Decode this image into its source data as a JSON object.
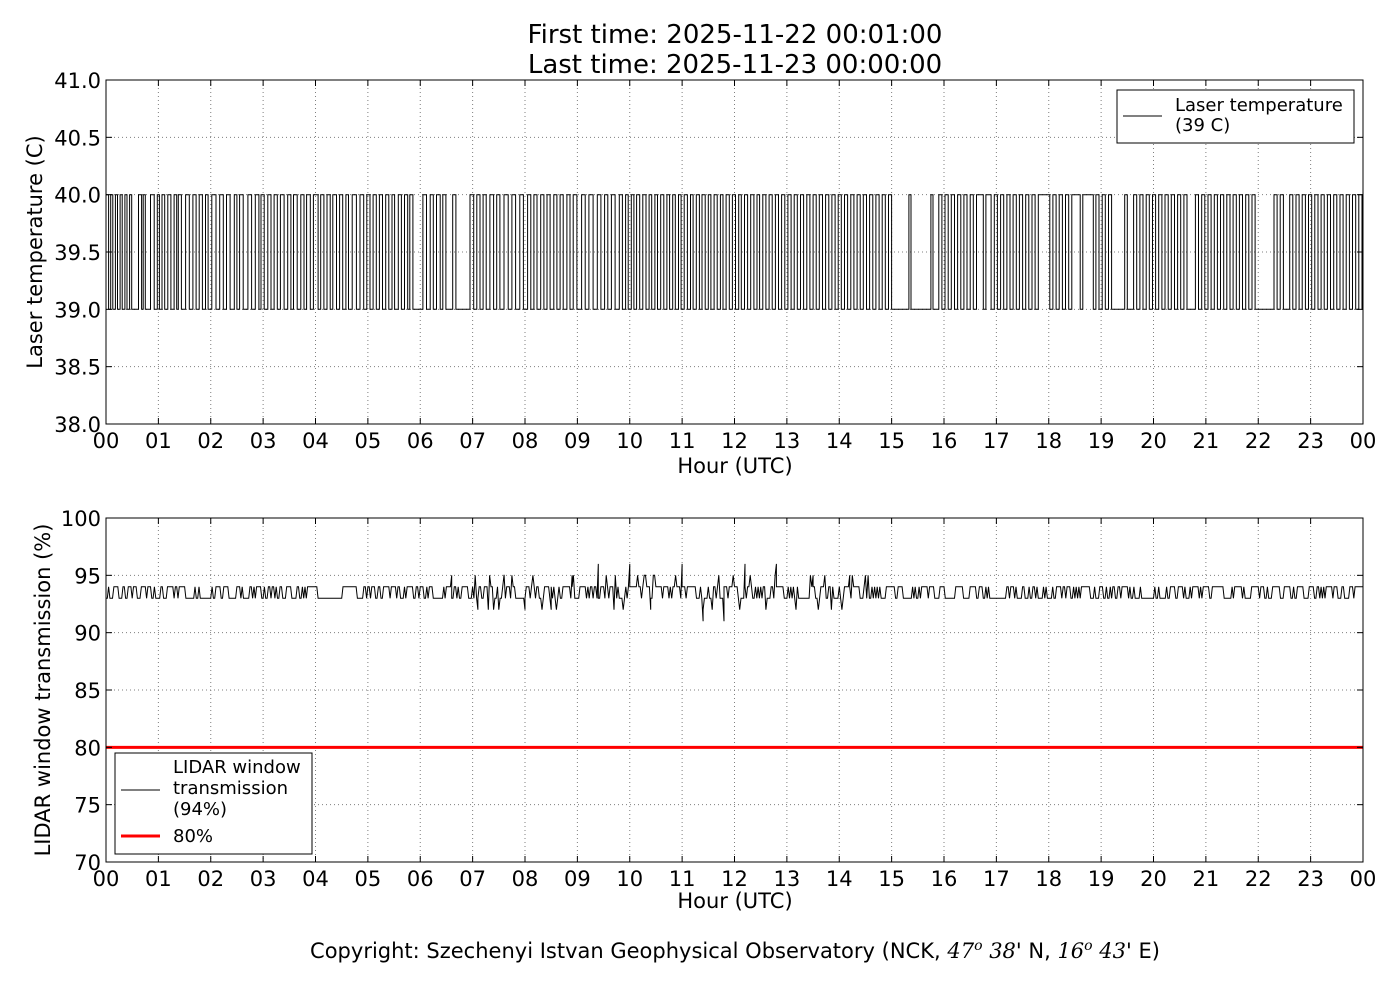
{
  "figure": {
    "title_line1": "First time: 2025-11-22 00:01:00",
    "title_line2": "Last time: 2025-11-23 00:00:00",
    "copyright": {
      "prefix": "Copyright: Szechenyi Istvan Geophysical Observatory (NCK, ",
      "lat_deg": "47",
      "deg_mark": "o",
      "lat_min": "38",
      "lat_suffix": "' N, ",
      "lon_deg": "16",
      "lon_min": "43",
      "lon_suffix": "' E)"
    }
  },
  "colors": {
    "series": "#000000",
    "threshold": "#ff0000",
    "grid": "#7f7f7f"
  },
  "chart_data": [
    {
      "type": "line",
      "title": "",
      "xlabel": "Hour (UTC)",
      "ylabel": "Laser temperature (C)",
      "xlim": [
        0,
        24
      ],
      "ylim": [
        38.0,
        41.0
      ],
      "xtick_labels": [
        "00",
        "01",
        "02",
        "03",
        "04",
        "05",
        "06",
        "07",
        "08",
        "09",
        "10",
        "11",
        "12",
        "13",
        "14",
        "15",
        "16",
        "17",
        "18",
        "19",
        "20",
        "21",
        "22",
        "23",
        "00"
      ],
      "ytick_values": [
        38.0,
        38.5,
        39.0,
        39.5,
        40.0,
        40.5,
        41.0
      ],
      "ytick_labels": [
        "38.0",
        "38.5",
        "39.0",
        "39.5",
        "40.0",
        "40.5",
        "41.0"
      ],
      "grid": true,
      "legend_position": "top-right",
      "series": [
        {
          "name": "Laser temperature\n(39 C)",
          "legend_lines": [
            "Laser temperature",
            "(39 C)"
          ],
          "color": "#000000",
          "levels": [
            39.0,
            40.0
          ],
          "description_of_values": "step signal switching between the two levels",
          "toggle_hours": [
            0.0,
            0.05,
            0.09,
            0.13,
            0.18,
            0.22,
            0.27,
            0.31,
            0.36,
            0.4,
            0.45,
            0.49,
            0.62,
            0.68,
            0.71,
            0.75,
            0.85,
            0.92,
            0.98,
            1.02,
            1.07,
            1.12,
            1.18,
            1.24,
            1.3,
            1.35,
            1.38,
            1.44,
            1.52,
            1.59,
            1.66,
            1.72,
            1.78,
            1.84,
            1.9,
            1.95,
            2.02,
            2.1,
            2.17,
            2.24,
            2.3,
            2.37,
            2.45,
            2.5,
            2.55,
            2.62,
            2.71,
            2.78,
            2.85,
            2.92,
            2.96,
            3.02,
            3.09,
            3.15,
            3.21,
            3.27,
            3.33,
            3.4,
            3.47,
            3.53,
            3.58,
            3.65,
            3.72,
            3.78,
            3.83,
            3.9,
            3.96,
            4.05,
            4.1,
            4.16,
            4.22,
            4.28,
            4.33,
            4.4,
            4.46,
            4.52,
            4.58,
            4.63,
            4.7,
            4.78,
            4.85,
            4.92,
            4.98,
            5.04,
            5.1,
            5.16,
            5.22,
            5.28,
            5.34,
            5.4,
            5.46,
            5.51,
            5.58,
            5.64,
            5.7,
            5.76,
            5.8,
            5.86,
            6.05,
            6.12,
            6.19,
            6.25,
            6.31,
            6.38,
            6.43,
            6.49,
            6.62,
            6.68,
            6.95,
            7.02,
            7.08,
            7.14,
            7.2,
            7.26,
            7.33,
            7.4,
            7.46,
            7.52,
            7.6,
            7.68,
            7.75,
            7.82,
            7.9,
            7.97,
            8.05,
            8.11,
            8.17,
            8.23,
            8.3,
            8.36,
            8.42,
            8.48,
            8.55,
            8.61,
            8.67,
            8.73,
            8.8,
            8.86,
            8.92,
            8.99,
            9.08,
            9.15,
            9.22,
            9.3,
            9.38,
            9.45,
            9.52,
            9.58,
            9.65,
            9.72,
            9.8,
            9.86,
            9.92,
            9.97,
            10.03,
            10.08,
            10.13,
            10.19,
            10.25,
            10.31,
            10.37,
            10.42,
            10.48,
            10.53,
            10.59,
            10.65,
            10.71,
            10.76,
            10.82,
            10.87,
            10.93,
            10.98,
            11.04,
            11.1,
            11.16,
            11.21,
            11.27,
            11.33,
            11.38,
            11.44,
            11.5,
            11.55,
            11.61,
            11.67,
            11.73,
            11.78,
            11.84,
            11.9,
            11.96,
            12.02,
            12.08,
            12.13,
            12.19,
            12.25,
            12.31,
            12.37,
            12.43,
            12.48,
            12.54,
            12.6,
            12.66,
            12.72,
            12.78,
            12.84,
            12.9,
            12.96,
            13.02,
            13.08,
            13.14,
            13.2,
            13.26,
            13.32,
            13.38,
            13.44,
            13.5,
            13.56,
            13.62,
            13.68,
            13.74,
            13.8,
            13.86,
            13.92,
            13.98,
            14.04,
            14.1,
            14.16,
            14.22,
            14.28,
            14.34,
            14.4,
            14.46,
            14.52,
            14.58,
            14.64,
            14.7,
            14.76,
            14.82,
            14.88,
            14.94,
            15.0,
            15.33,
            15.37,
            15.75,
            15.79,
            15.9,
            15.96,
            16.02,
            16.08,
            16.14,
            16.2,
            16.26,
            16.32,
            16.38,
            16.44,
            16.5,
            16.56,
            16.62,
            16.75,
            16.8,
            16.9,
            16.96,
            17.02,
            17.08,
            17.14,
            17.2,
            17.26,
            17.32,
            17.38,
            17.44,
            17.5,
            17.56,
            17.62,
            17.68,
            17.74,
            17.8,
            18.02,
            18.08,
            18.14,
            18.2,
            18.26,
            18.32,
            18.38,
            18.44,
            18.6,
            18.65,
            18.85,
            18.9,
            18.96,
            19.02,
            19.08,
            19.14,
            19.2,
            19.45,
            19.5,
            19.62,
            19.68,
            19.74,
            19.8,
            19.86,
            19.92,
            19.98,
            20.04,
            20.1,
            20.16,
            20.22,
            20.28,
            20.34,
            20.4,
            20.46,
            20.52,
            20.58,
            20.64,
            20.8,
            20.86,
            20.92,
            20.98,
            21.04,
            21.1,
            21.16,
            21.22,
            21.28,
            21.34,
            21.4,
            21.46,
            21.52,
            21.58,
            21.64,
            21.7,
            21.76,
            21.82,
            21.88,
            21.94,
            22.3,
            22.36,
            22.42,
            22.48,
            22.6,
            22.66,
            22.72,
            22.78,
            22.84,
            22.9,
            22.96,
            23.02,
            23.08,
            23.14,
            23.2,
            23.26,
            23.32,
            23.38,
            23.44,
            23.5,
            23.56,
            23.62,
            23.68,
            23.74,
            23.8,
            23.86,
            23.92,
            23.98
          ]
        }
      ]
    },
    {
      "type": "line",
      "title": "",
      "xlabel": "Hour (UTC)",
      "ylabel": "LIDAR window transmission (%)",
      "xlim": [
        0,
        24
      ],
      "ylim": [
        70,
        100
      ],
      "xtick_labels": [
        "00",
        "01",
        "02",
        "03",
        "04",
        "05",
        "06",
        "07",
        "08",
        "09",
        "10",
        "11",
        "12",
        "13",
        "14",
        "15",
        "16",
        "17",
        "18",
        "19",
        "20",
        "21",
        "22",
        "23",
        "00"
      ],
      "ytick_values": [
        70,
        75,
        80,
        85,
        90,
        95,
        100
      ],
      "ytick_labels": [
        "70",
        "75",
        "80",
        "85",
        "90",
        "95",
        "100"
      ],
      "grid": true,
      "legend_position": "bottom-left",
      "series": [
        {
          "name": "LIDAR window\ntransmission\n(94%)",
          "legend_lines": [
            "LIDAR window",
            "transmission",
            "(94%)"
          ],
          "color": "#000000",
          "baseline_levels": [
            93,
            94
          ],
          "active_window_hours": [
            6.6,
            14.6
          ],
          "active_excursions": [
            {
              "x": 7.1,
              "y": 92
            },
            {
              "x": 7.6,
              "y": 95
            },
            {
              "x": 8.0,
              "y": 92
            },
            {
              "x": 8.5,
              "y": 92
            },
            {
              "x": 8.9,
              "y": 95
            },
            {
              "x": 9.4,
              "y": 96
            },
            {
              "x": 9.7,
              "y": 92
            },
            {
              "x": 10.0,
              "y": 96
            },
            {
              "x": 10.4,
              "y": 92
            },
            {
              "x": 11.0,
              "y": 96
            },
            {
              "x": 11.4,
              "y": 91
            },
            {
              "x": 11.8,
              "y": 91
            },
            {
              "x": 12.2,
              "y": 96
            },
            {
              "x": 12.6,
              "y": 92
            },
            {
              "x": 12.8,
              "y": 96
            },
            {
              "x": 13.5,
              "y": 95
            },
            {
              "x": 14.2,
              "y": 95
            },
            {
              "x": 6.6,
              "y": 95
            }
          ],
          "description_of_values": "mostly steps between 93 and 94, with excursions between 91 and 96 during 06:36-14:36"
        },
        {
          "name": "80%",
          "legend_lines": [
            "80%"
          ],
          "color": "#ff0000",
          "x": [
            0,
            24
          ],
          "y": [
            80,
            80
          ]
        }
      ]
    }
  ]
}
